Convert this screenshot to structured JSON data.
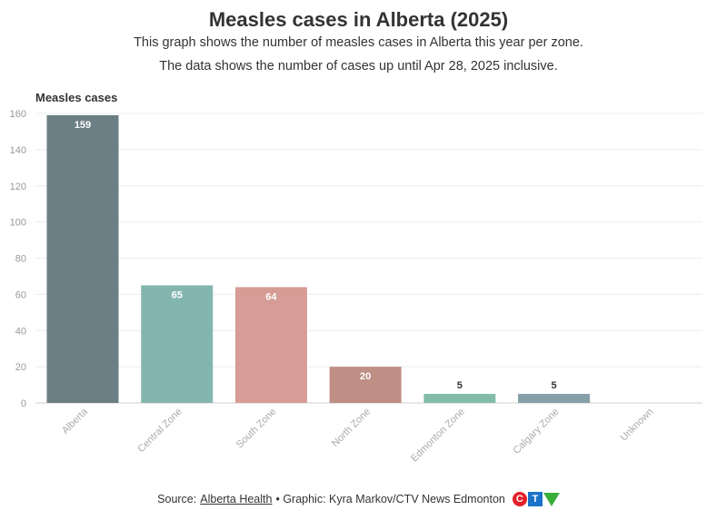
{
  "title": "Measles cases in Alberta (2025)",
  "subtitle_line1": "This graph shows the number of measles cases in Alberta this year per zone.",
  "subtitle_line2": "The data shows the number of cases up until Apr 28, 2025 inclusive.",
  "footer": {
    "source_prefix": "Source:",
    "source_link": "Alberta Health",
    "graphic_credit": "• Graphic: Kyra Markov/CTV News Edmonton",
    "logo_name": "ctv-logo"
  },
  "chart_data": {
    "type": "bar",
    "title": "Measles cases in Alberta (2025)",
    "xlabel": "",
    "ylabel": "Measles cases",
    "ylim": [
      0,
      160
    ],
    "yticks": [
      0,
      20,
      40,
      60,
      80,
      100,
      120,
      140,
      160
    ],
    "grid": true,
    "categories": [
      "Alberta",
      "Central Zone",
      "South Zone",
      "North Zone",
      "Edmonton Zone",
      "Calgary Zone",
      "Unknown"
    ],
    "values": [
      159,
      65,
      64,
      20,
      5,
      5,
      0
    ],
    "value_labels": [
      "159",
      "65",
      "64",
      "20",
      "5",
      "5",
      ""
    ],
    "colors": [
      "#6b7f85",
      "#84b6b0",
      "#d69c95",
      "#bf8e84",
      "#82bca8",
      "#87a0a8",
      "#cccccc"
    ]
  }
}
